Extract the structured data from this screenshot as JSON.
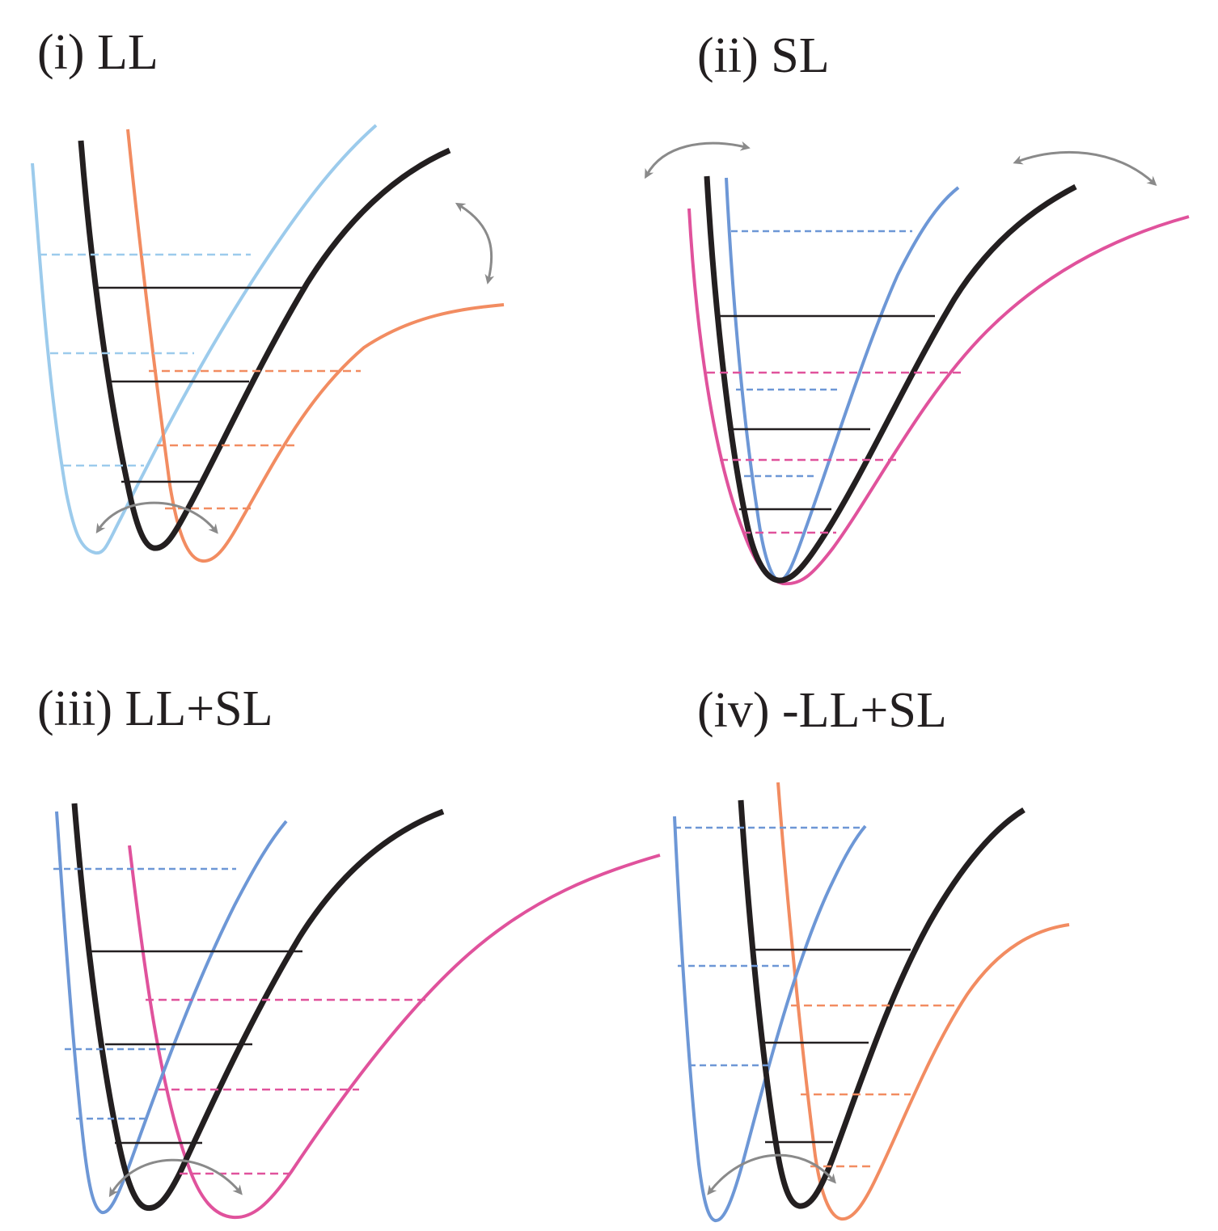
{
  "panels": {
    "p1": {
      "title": "(i) LL"
    },
    "p2": {
      "title": "(ii) SL"
    },
    "p3": {
      "title": "(iii) LL+SL"
    },
    "p4": {
      "title": "(iv) -LL+SL"
    }
  },
  "colors": {
    "ground": "#231f20",
    "light_blue": "#9ccbec",
    "blue": "#6d97d6",
    "orange": "#f28c61",
    "magenta": "#e0529c",
    "arrow": "#8a8a8a"
  }
}
